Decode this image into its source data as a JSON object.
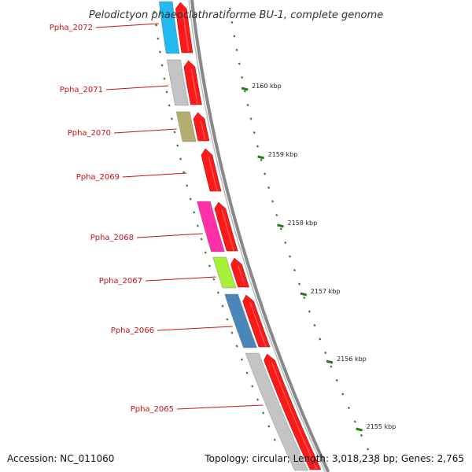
{
  "title": "Pelodictyon phaeoclathratiforme BU-1, complete genome",
  "footer": {
    "accession": "Accession: NC_011060",
    "summary": "Topology: circular; Length: 3,018,238 bp; Genes: 2,765"
  },
  "colors": {
    "cds": "#ff1a1a",
    "backbone": "#888888",
    "tick": "#2a7a1a",
    "label": "#cc1111"
  },
  "genes": [
    {
      "id": "Ppha_2072",
      "cog_color": "#22b8f0"
    },
    {
      "id": "Ppha_2071",
      "cog_color": "#c4c4c4"
    },
    {
      "id": "Ppha_2070",
      "cog_color": "#b3ad6f"
    },
    {
      "id": "Ppha_2069",
      "cog_color": ""
    },
    {
      "id": "Ppha_2068",
      "cog_color": "#ff2fa8"
    },
    {
      "id": "Ppha_2067",
      "cog_color": "#a6f03a"
    },
    {
      "id": "Ppha_2066",
      "cog_color": "#4a86b8"
    },
    {
      "id": "Ppha_2065",
      "cog_color": "#c4c4c4"
    }
  ],
  "kbp_ticks": [
    "2160 kbp",
    "2159 kbp",
    "2158 kbp",
    "2157 kbp",
    "2156 kbp",
    "2155 kbp"
  ]
}
